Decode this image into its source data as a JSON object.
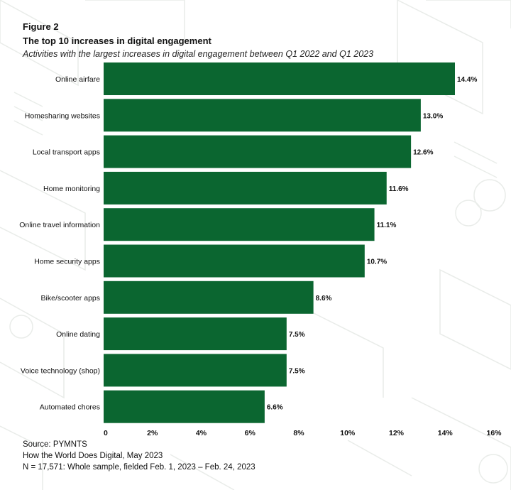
{
  "header": {
    "figure_label": "Figure 2",
    "title": "The top 10 increases in digital engagement",
    "subtitle": "Activities with the largest increases in digital engagement between Q1 2022 and Q1 2023"
  },
  "footer": {
    "source": "Source: PYMNTS",
    "report": "How the World Does Digital, May 2023",
    "sample": "N = 17,571: Whole sample, fielded Feb. 1, 2023 – Feb. 24, 2023"
  },
  "colors": {
    "bar": "#0b6630",
    "background_pattern": "#e9ece9"
  },
  "chart_data": {
    "type": "bar",
    "orientation": "horizontal",
    "categories": [
      "Online airfare",
      "Homesharing websites",
      "Local transport apps",
      "Home monitoring",
      "Online travel information",
      "Home security apps",
      "Bike/scooter apps",
      "Online dating",
      "Voice technology (shop)",
      "Automated chores"
    ],
    "values": [
      14.4,
      13.0,
      12.6,
      11.6,
      11.1,
      10.7,
      8.6,
      7.5,
      7.5,
      6.6
    ],
    "value_labels": [
      "14.4%",
      "13.0%",
      "12.6%",
      "11.6%",
      "11.1%",
      "10.7%",
      "8.6%",
      "7.5%",
      "7.5%",
      "6.6%"
    ],
    "xlim": [
      0,
      16
    ],
    "xticks": [
      0,
      2,
      4,
      6,
      8,
      10,
      12,
      14,
      16
    ],
    "xtick_labels": [
      "0",
      "2%",
      "4%",
      "6%",
      "8%",
      "10%",
      "12%",
      "14%",
      "16%"
    ],
    "grid": false,
    "legend": "none"
  }
}
